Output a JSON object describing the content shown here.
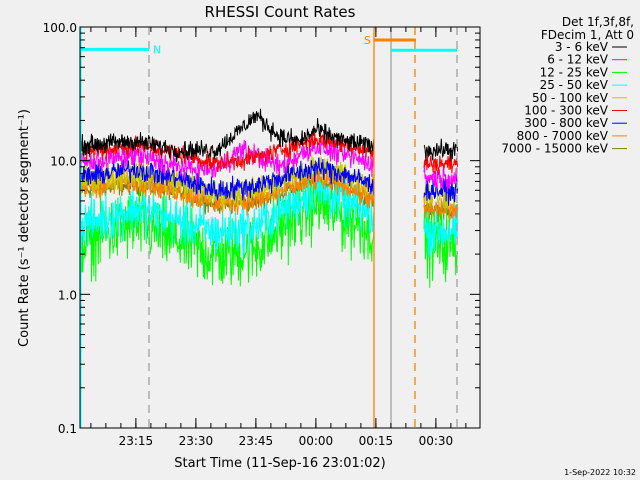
{
  "chart_data": {
    "type": "line",
    "title": "RHESSI Count Rates",
    "xlabel": "Start Time (11-Sep-16 23:01:02)",
    "ylabel": "Count Rate (s⁻¹ detector segment⁻¹)",
    "yscale": "log",
    "ylim": [
      0.1,
      100
    ],
    "xlim_minutes_after_start": [
      0,
      100
    ],
    "yticks": [
      "0.1",
      "1.0",
      "10.0",
      "100.0"
    ],
    "xticks": [
      {
        "label": "23:15",
        "t": 13.97
      },
      {
        "label": "23:30",
        "t": 28.97
      },
      {
        "label": "23:45",
        "t": 43.97
      },
      {
        "label": "00:00",
        "t": 58.97
      },
      {
        "label": "00:15",
        "t": 73.97
      },
      {
        "label": "00:30",
        "t": 88.97
      }
    ],
    "legend_header": [
      "Det 1f,3f,8f,",
      "FDecim 1, Att 0"
    ],
    "legend_placement": "top-right outside",
    "data_segments_minutes": [
      [
        0,
        73.5
      ],
      [
        86,
        94.5
      ]
    ],
    "series": [
      {
        "name": "3 - 6 keV",
        "color": "#000000",
        "noise": 0.08,
        "t": [
          0,
          14,
          24,
          34,
          40,
          44,
          50,
          55,
          59,
          66,
          73.5,
          86,
          94.5
        ],
        "values": [
          13,
          14,
          12,
          12,
          17,
          22,
          15,
          14,
          17,
          14,
          13,
          12,
          12
        ]
      },
      {
        "name": "6 - 12 keV",
        "color": "#ff00ff",
        "noise": 0.1,
        "t": [
          0,
          14,
          24,
          34,
          40,
          44,
          50,
          59,
          66,
          73.5,
          86,
          94.5
        ],
        "values": [
          9.5,
          11,
          9,
          8.5,
          12,
          11,
          9,
          13,
          11,
          9.5,
          7.5,
          7.5
        ]
      },
      {
        "name": "12 - 25 keV",
        "color": "#00ff00",
        "noise": 0.3,
        "t": [
          0,
          14,
          24,
          34,
          44,
          52,
          59,
          66,
          73.5,
          86,
          94.5
        ],
        "values": [
          2.4,
          3.4,
          2.6,
          1.9,
          2.2,
          3.5,
          4.8,
          3.8,
          3,
          2.4,
          2.4
        ]
      },
      {
        "name": "25 - 50 keV",
        "color": "#00ffff",
        "noise": 0.2,
        "t": [
          0,
          14,
          24,
          34,
          44,
          52,
          59,
          66,
          73.5,
          86,
          94.5
        ],
        "values": [
          3.3,
          4.4,
          3.6,
          2.9,
          3.2,
          4.6,
          6,
          5,
          3.8,
          3,
          3
        ]
      },
      {
        "name": "50 - 100 keV",
        "color": "#c8c800",
        "noise": 0.12,
        "t": [
          0,
          14,
          24,
          34,
          44,
          52,
          59,
          66,
          73.5,
          86,
          94.5
        ],
        "values": [
          7,
          8,
          7,
          5.5,
          6,
          7.5,
          9,
          8,
          6.5,
          5.5,
          5.5
        ]
      },
      {
        "name": "100 - 300 keV",
        "color": "#ff0000",
        "noise": 0.08,
        "t": [
          0,
          14,
          24,
          34,
          44,
          52,
          59,
          66,
          73.5,
          86,
          94.5
        ],
        "values": [
          11.5,
          13,
          11.5,
          9.5,
          10.5,
          12.5,
          14.5,
          13.5,
          11.5,
          9.5,
          9.5
        ]
      },
      {
        "name": "300 - 800 keV",
        "color": "#0000ff",
        "noise": 0.1,
        "t": [
          0,
          14,
          24,
          34,
          44,
          52,
          59,
          66,
          73.5,
          86,
          94.5
        ],
        "values": [
          7.5,
          8.7,
          7.5,
          6,
          6.5,
          7.8,
          8.8,
          8,
          6.5,
          6,
          6
        ]
      },
      {
        "name": "800 - 7000 keV",
        "color": "#ff8000",
        "noise": 0.1,
        "t": [
          0,
          14,
          24,
          34,
          44,
          52,
          59,
          66,
          73.5,
          86,
          94.5
        ],
        "values": [
          6.3,
          7,
          6,
          4.8,
          5,
          6.2,
          7.3,
          6.7,
          5,
          4.3,
          4.3
        ]
      },
      {
        "name": "7000 - 15000 keV",
        "color": "#808000",
        "noise": 0.08,
        "t": [
          0,
          14,
          24,
          34,
          44,
          52,
          59,
          66,
          73.5,
          86,
          94.5
        ],
        "values": [
          6,
          6.6,
          5.8,
          4.7,
          4.9,
          6,
          7,
          6.4,
          4.9,
          4.2,
          4.2
        ]
      }
    ],
    "annotations": {
      "vlines": [
        {
          "t": 0.2,
          "color": "#00ffff",
          "style": "solid"
        },
        {
          "t": 17.25,
          "color": "#a0a0a0",
          "style": "dashed"
        },
        {
          "t": 73.5,
          "color": "#ff8000",
          "style": "solid"
        },
        {
          "t": 77.75,
          "color": "#a0a0a0",
          "style": "solid"
        },
        {
          "t": 83.75,
          "color": "#ff8000",
          "style": "dashed"
        },
        {
          "t": 94.25,
          "color": "#a0a0a0",
          "style": "dashed"
        }
      ],
      "bars": [
        {
          "label": "N",
          "t0": 0,
          "t1": 17.25,
          "value": 68,
          "color": "#00ffff"
        },
        {
          "label": "S",
          "t0": 73.5,
          "t1": 84,
          "value": 80,
          "color": "#ff8000"
        },
        {
          "label": "",
          "t0": 77.75,
          "t1": 94.25,
          "value": 67,
          "color": "#00ffff"
        }
      ]
    },
    "footer_timestamp": "1-Sep-2022 10:32"
  }
}
